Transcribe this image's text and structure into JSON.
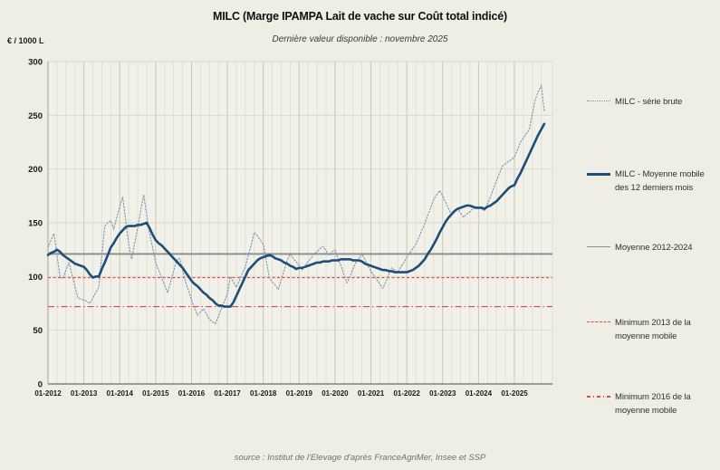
{
  "header": {
    "title": "MILC (Marge IPAMPA Lait de vache sur Coût total indicé)",
    "subtitle": "Dernière valeur disponible : novembre 2025"
  },
  "axes": {
    "y_unit": "€ / 1000 L",
    "y_ticks": [
      0,
      50,
      100,
      150,
      200,
      250,
      300
    ],
    "x_tick_labels": [
      "01-2012",
      "01-2013",
      "01-2014",
      "01-2015",
      "01-2016",
      "01-2017",
      "01-2018",
      "01-2019",
      "01-2020",
      "01-2021",
      "01-2022",
      "01-2023",
      "01-2024",
      "01-2025"
    ]
  },
  "legend": [
    {
      "label": "MILC - série brute",
      "style": "dotted",
      "color": "#8095ac"
    },
    {
      "label": "MILC - Moyenne mobile des 12 derniers mois",
      "style": "solid-thick",
      "color": "#1d4e79"
    },
    {
      "label": "Moyenne 2012-2024",
      "style": "solid",
      "color": "#8c8c8c"
    },
    {
      "label": "Minimum 2013  de la moyenne mobile",
      "style": "dashed",
      "color": "#e8473d"
    },
    {
      "label": "Minimum 2016 de la moyenne mobile",
      "style": "dash-dot",
      "color": "#e8473d"
    }
  ],
  "footer": {
    "source": "source : Institut de l'Elevage d'après FranceAgriMer, Insee et SSP"
  },
  "chart_data": {
    "type": "line",
    "title": "MILC (Marge IPAMPA Lait de vache sur Coût total indicé)",
    "subtitle": "Dernière valeur disponible : novembre 2025",
    "ylabel": "€ / 1000 L",
    "ylim": [
      0,
      300
    ],
    "y_ticks": [
      0,
      50,
      100,
      150,
      200,
      250,
      300
    ],
    "x_start": "01-2012",
    "x_end": "11-2025",
    "frequency": "monthly",
    "x_tick_labels": [
      "01-2012",
      "01-2013",
      "01-2014",
      "01-2015",
      "01-2016",
      "01-2017",
      "01-2018",
      "01-2019",
      "01-2020",
      "01-2021",
      "01-2022",
      "01-2023",
      "01-2024",
      "01-2025"
    ],
    "grid": "on",
    "legend_position": "right",
    "series": [
      {
        "name": "MILC - série brute",
        "color": "#8095ac",
        "line_style": "dotted",
        "values": [
          127,
          134,
          140,
          120,
          100,
          98,
          106,
          113,
          102,
          91,
          80,
          79,
          78,
          77,
          75,
          80,
          85,
          90,
          119,
          147,
          150,
          152,
          144,
          155,
          165,
          174,
          152,
          130,
          116,
          131,
          145,
          161,
          176,
          158,
          140,
          127,
          113,
          106,
          99,
          92,
          85,
          95,
          105,
          115,
          117,
          106,
          95,
          87,
          78,
          71,
          64,
          67,
          70,
          65,
          60,
          58,
          56,
          63,
          70,
          77,
          84,
          100,
          95,
          90,
          96,
          103,
          109,
          120,
          130,
          141,
          138,
          134,
          130,
          115,
          99,
          95,
          92,
          88,
          97,
          106,
          115,
          121,
          117,
          114,
          110,
          106,
          110,
          114,
          117,
          121,
          123,
          126,
          128,
          124,
          120,
          123,
          125,
          117,
          110,
          102,
          94,
          100,
          107,
          113,
          117,
          121,
          116,
          110,
          105,
          101,
          97,
          93,
          89,
          95,
          102,
          108,
          106,
          104,
          109,
          113,
          118,
          122,
          126,
          130,
          136,
          143,
          149,
          157,
          164,
          172,
          176,
          180,
          175,
          169,
          163,
          157,
          160,
          163,
          159,
          155,
          158,
          160,
          163,
          164,
          165,
          163,
          161,
          168,
          174,
          182,
          189,
          196,
          203,
          205,
          207,
          209,
          211,
          218,
          225,
          229,
          233,
          237,
          251,
          265,
          272,
          278,
          254
        ]
      },
      {
        "name": "MILC - Moyenne mobile des 12 derniers mois",
        "color": "#1d4e79",
        "line_style": "solid",
        "values": [
          120,
          122,
          123,
          125,
          123,
          120,
          118,
          116,
          114,
          112,
          111,
          110,
          109,
          106,
          102,
          99,
          100,
          100,
          107,
          113,
          120,
          127,
          131,
          136,
          140,
          143,
          146,
          147,
          147,
          147,
          148,
          148,
          149,
          150,
          145,
          139,
          134,
          131,
          129,
          126,
          123,
          120,
          117,
          114,
          111,
          108,
          104,
          100,
          96,
          93,
          91,
          88,
          85,
          83,
          80,
          78,
          75,
          73,
          73,
          72,
          72,
          72,
          76,
          82,
          88,
          94,
          100,
          106,
          109,
          112,
          115,
          117,
          118,
          119,
          120,
          119,
          117,
          116,
          115,
          113,
          112,
          110,
          109,
          107,
          108,
          108,
          109,
          110,
          111,
          112,
          113,
          113,
          114,
          114,
          114,
          115,
          115,
          115,
          116,
          116,
          116,
          116,
          115,
          115,
          115,
          114,
          112,
          111,
          110,
          109,
          108,
          107,
          106,
          106,
          105,
          105,
          104,
          104,
          104,
          104,
          104,
          105,
          106,
          108,
          110,
          113,
          116,
          121,
          125,
          130,
          135,
          141,
          146,
          151,
          155,
          158,
          161,
          163,
          164,
          165,
          166,
          166,
          165,
          164,
          164,
          164,
          163,
          165,
          166,
          168,
          170,
          173,
          176,
          179,
          182,
          184,
          185,
          191,
          196,
          202,
          208,
          214,
          220,
          226,
          232,
          237,
          242
        ]
      }
    ],
    "reference_lines": [
      {
        "name": "Moyenne 2012-2024",
        "value": 121,
        "color": "#8c8c8c",
        "style": "solid"
      },
      {
        "name": "Minimum 2013 de la moyenne mobile",
        "value": 99,
        "color": "#e8473d",
        "style": "dashed"
      },
      {
        "name": "Minimum 2016 de la moyenne mobile",
        "value": 72,
        "color": "#e8473d",
        "style": "dash-dot"
      }
    ]
  }
}
